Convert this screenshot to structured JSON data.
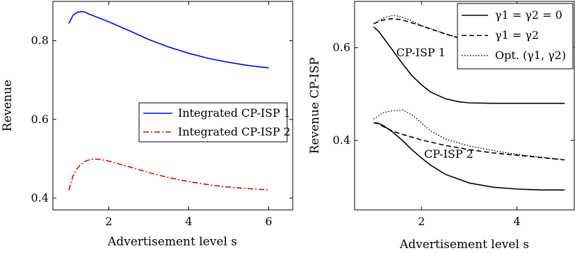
{
  "chart_data": [
    {
      "type": "line",
      "xlabel": "Advertisement level s",
      "ylabel": "Revenue",
      "xlim": [
        0.6,
        6.6
      ],
      "ylim": [
        0.37,
        0.9
      ],
      "xticks": [
        2,
        4,
        6
      ],
      "yticks": [
        0.4,
        0.6,
        0.8
      ],
      "xtick_labels": [
        "2",
        "4",
        "6"
      ],
      "ytick_labels": [
        "0.4",
        "0.6",
        "0.8"
      ],
      "grid": false,
      "legend_position": "center-right",
      "series": [
        {
          "name": "Integrated CP-ISP 1",
          "color": "#0000ff",
          "style": "solid",
          "x": [
            1.0,
            1.1,
            1.2,
            1.3,
            1.4,
            1.5,
            1.7,
            2.0,
            2.5,
            3.0,
            3.5,
            4.0,
            4.5,
            5.0,
            5.5,
            6.0
          ],
          "y": [
            0.844,
            0.864,
            0.872,
            0.874,
            0.873,
            0.868,
            0.86,
            0.848,
            0.826,
            0.803,
            0.784,
            0.768,
            0.755,
            0.745,
            0.737,
            0.731
          ]
        },
        {
          "name": "Integrated CP-ISP 2",
          "color": "#dd0000",
          "style": "dashdot",
          "x": [
            1.0,
            1.1,
            1.2,
            1.3,
            1.4,
            1.5,
            1.6,
            1.7,
            1.8,
            2.0,
            2.5,
            3.0,
            3.5,
            4.0,
            4.5,
            5.0,
            5.5,
            6.0
          ],
          "y": [
            0.42,
            0.455,
            0.474,
            0.486,
            0.493,
            0.497,
            0.499,
            0.499,
            0.498,
            0.494,
            0.48,
            0.465,
            0.452,
            0.442,
            0.434,
            0.428,
            0.424,
            0.421
          ]
        }
      ]
    },
    {
      "type": "line",
      "xlabel": "Advertisement level s",
      "ylabel": "Revenue CP-ISP",
      "xlim": [
        0.6,
        5.2
      ],
      "ylim": [
        0.25,
        0.7
      ],
      "xticks": [
        2,
        4
      ],
      "yticks": [
        0.4,
        0.6
      ],
      "xtick_labels": [
        "2",
        "4"
      ],
      "ytick_labels": [
        "0.4",
        "0.6"
      ],
      "grid": false,
      "legend_position": "top-right",
      "annotations": [
        "CP-ISP 1",
        "CP-ISP 2"
      ],
      "series": [
        {
          "name": "γ1 = γ2 = 0",
          "color": "#000000",
          "style": "solid",
          "group": "CP-ISP 1",
          "x": [
            1.0,
            1.1,
            1.2,
            1.4,
            1.6,
            1.8,
            2.0,
            2.2,
            2.5,
            2.8,
            3.0,
            3.5,
            4.0,
            4.5,
            5.0
          ],
          "y": [
            0.645,
            0.636,
            0.622,
            0.594,
            0.566,
            0.54,
            0.52,
            0.504,
            0.49,
            0.483,
            0.481,
            0.48,
            0.48,
            0.48,
            0.48
          ]
        },
        {
          "name": "γ1 = γ2",
          "color": "#000000",
          "style": "dashed",
          "group": "CP-ISP 1",
          "x": [
            1.0,
            1.2,
            1.4,
            1.6,
            1.8,
            2.0,
            2.5,
            3.0,
            3.5,
            4.0,
            4.5,
            5.0
          ],
          "y": [
            0.652,
            0.66,
            0.663,
            0.66,
            0.654,
            0.647,
            0.63,
            0.614,
            0.6,
            0.589,
            0.582,
            0.578
          ]
        },
        {
          "name": "Opt. (γ1, γ2)",
          "color": "#000000",
          "style": "dotted",
          "group": "CP-ISP 1",
          "x": [
            1.0,
            1.2,
            1.4,
            1.6,
            1.8,
            2.0,
            2.5,
            3.0,
            3.5,
            4.0,
            4.5,
            5.0
          ],
          "y": [
            0.652,
            0.664,
            0.67,
            0.666,
            0.658,
            0.648,
            0.63,
            0.614,
            0.6,
            0.589,
            0.582,
            0.578
          ]
        },
        {
          "name": "γ1 = γ2 = 0",
          "color": "#000000",
          "style": "solid",
          "group": "CP-ISP 2",
          "x": [
            1.0,
            1.1,
            1.2,
            1.4,
            1.6,
            1.8,
            2.0,
            2.2,
            2.5,
            3.0,
            3.5,
            4.0,
            4.5,
            5.0
          ],
          "y": [
            0.438,
            0.437,
            0.432,
            0.418,
            0.4,
            0.38,
            0.362,
            0.346,
            0.327,
            0.308,
            0.299,
            0.295,
            0.293,
            0.293
          ]
        },
        {
          "name": "γ1 = γ2",
          "color": "#000000",
          "style": "dashed",
          "group": "CP-ISP 2",
          "x": [
            1.0,
            1.1,
            1.2,
            1.4,
            1.6,
            1.8,
            2.0,
            2.5,
            3.0,
            3.5,
            4.0,
            4.5,
            5.0
          ],
          "y": [
            0.438,
            0.436,
            0.43,
            0.42,
            0.413,
            0.407,
            0.401,
            0.389,
            0.38,
            0.373,
            0.368,
            0.363,
            0.358
          ]
        },
        {
          "name": "Opt. (γ1, γ2)",
          "color": "#000000",
          "style": "dotted",
          "group": "CP-ISP 2",
          "x": [
            1.0,
            1.2,
            1.4,
            1.6,
            1.8,
            2.0,
            2.2,
            2.5,
            3.0,
            3.5,
            4.0,
            4.5,
            5.0
          ],
          "y": [
            0.446,
            0.46,
            0.464,
            0.466,
            0.456,
            0.438,
            0.42,
            0.403,
            0.388,
            0.378,
            0.37,
            0.364,
            0.358
          ]
        }
      ]
    }
  ]
}
